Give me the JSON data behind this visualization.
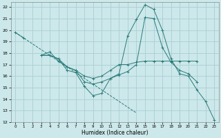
{
  "xlabel": "Humidex (Indice chaleur)",
  "background_color": "#cce8ea",
  "grid_color": "#aacdd4",
  "line_color": "#2a7a7a",
  "xlim": [
    -0.5,
    23.5
  ],
  "ylim": [
    12,
    22.4
  ],
  "xticks": [
    0,
    1,
    2,
    3,
    4,
    5,
    6,
    7,
    8,
    9,
    10,
    11,
    12,
    13,
    14,
    15,
    16,
    17,
    18,
    19,
    20,
    21,
    22,
    23
  ],
  "yticks": [
    12,
    13,
    14,
    15,
    16,
    17,
    18,
    19,
    20,
    21,
    22
  ],
  "series": [
    {
      "x": [
        0,
        1,
        2,
        3,
        4,
        5,
        6,
        7,
        8,
        9,
        10,
        11,
        12,
        13,
        14,
        15,
        16,
        17,
        18,
        19,
        20,
        21,
        22,
        23
      ],
      "y": [
        19.8,
        19.3,
        18.8,
        18.3,
        17.8,
        17.3,
        16.8,
        16.3,
        15.8,
        15.3,
        14.8,
        14.3,
        13.8,
        13.3,
        12.8,
        null,
        null,
        null,
        null,
        null,
        null,
        null,
        null,
        null
      ],
      "dashed": true,
      "has_markers": false
    },
    {
      "x": [
        3,
        4,
        5,
        6,
        7,
        8,
        9,
        10,
        11,
        12,
        13,
        14,
        15,
        16,
        17,
        18,
        19,
        20,
        21,
        22,
        23
      ],
      "y": [
        17.8,
        17.8,
        17.5,
        16.5,
        16.3,
        15.1,
        14.3,
        14.5,
        15.8,
        16.2,
        19.5,
        20.9,
        22.2,
        21.8,
        20.0,
        17.5,
        16.2,
        16.0,
        14.8,
        13.8,
        12.2
      ],
      "dashed": false,
      "has_markers": true
    },
    {
      "x": [
        3,
        4,
        5,
        6,
        7,
        8,
        9,
        10,
        11,
        12,
        13,
        14,
        15,
        16,
        17,
        18,
        19,
        20,
        21
      ],
      "y": [
        17.8,
        17.8,
        17.5,
        16.8,
        16.5,
        16.0,
        15.8,
        16.0,
        16.5,
        17.0,
        17.0,
        17.2,
        17.3,
        17.3,
        17.3,
        17.3,
        17.3,
        17.3,
        17.3
      ],
      "dashed": false,
      "has_markers": true
    },
    {
      "x": [
        3,
        4,
        5,
        6,
        7,
        8,
        9,
        10,
        11,
        12,
        13,
        14,
        15,
        16,
        17,
        18,
        19,
        20,
        21,
        22,
        23
      ],
      "y": [
        17.8,
        18.1,
        17.3,
        16.8,
        16.5,
        15.5,
        15.3,
        15.5,
        15.8,
        16.1,
        16.4,
        17.0,
        21.1,
        21.0,
        18.5,
        17.2,
        16.5,
        16.2,
        15.5,
        null,
        null
      ],
      "dashed": false,
      "has_markers": true
    },
    {
      "x": [
        0,
        1
      ],
      "y": [
        19.8,
        19.3
      ],
      "dashed": false,
      "has_markers": true
    }
  ]
}
